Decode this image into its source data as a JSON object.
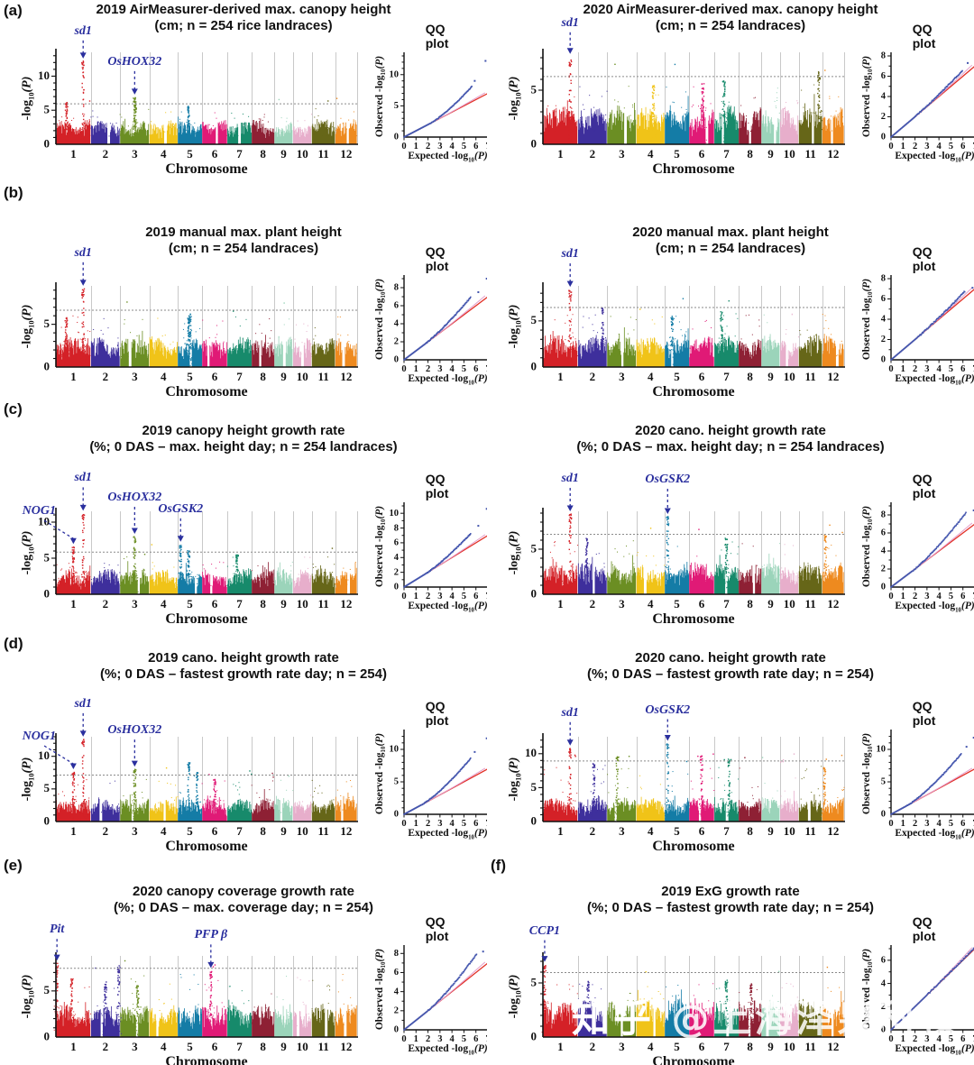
{
  "panel_letters": [
    "(a)",
    "(b)",
    "(c)",
    "(d)",
    "(e)",
    "(f)"
  ],
  "watermark": {
    "part1": "知乎",
    "part2": " @上海泽泉科技"
  },
  "axis_labels": {
    "manhattan_x": "Chromosome",
    "log_pre": "-log",
    "log_sub": "10",
    "log_arg": "(P)",
    "qq_obs_pre": "Observed -log",
    "qq_exp_pre": "Expected -log",
    "qq_title": "QQ plot"
  },
  "palette": {
    "chromosome_colors": [
      "#d42127",
      "#3e2f9c",
      "#6b8e23",
      "#f0c318",
      "#147ca6",
      "#e01a76",
      "#178a6b",
      "#8e2034",
      "#9bd4ba",
      "#e7aecb",
      "#666618",
      "#ee8a1f"
    ],
    "gene_label": "#2a2f9e",
    "threshold_line": "#8a8a8a",
    "gridline": "#c9c9c9",
    "axis": "#111111",
    "qq_observed": "#4456ae",
    "qq_expected": "#e23026",
    "qq_secondary": "#e49ecb",
    "background": "#ffffff"
  },
  "chart_data": {
    "type": "scatter",
    "subtype": "gwas-manhattan-with-qq-plots",
    "sample_size": 254,
    "chromosome_labels": [
      "1",
      "2",
      "3",
      "4",
      "5",
      "6",
      "7",
      "8",
      "9",
      "10",
      "11",
      "12"
    ],
    "chromosome_rel_lengths": [
      43,
      36,
      36,
      35,
      30,
      31,
      30,
      28,
      23,
      23,
      29,
      27
    ],
    "qq_x_ticks": [
      0,
      1,
      2,
      3,
      4,
      5,
      6,
      7
    ],
    "qq_x_max": 7,
    "panels": [
      {
        "id": "a-left",
        "title": [
          "2019 AirMeasurer-derived max. canopy height",
          "(cm; n = 254 rice landraces)"
        ],
        "y_ticks": [
          0,
          5,
          10
        ],
        "y_max": 13.5,
        "threshold": 6.0,
        "genes": [
          {
            "name": "sd1",
            "chr": 1,
            "pos": 0.78,
            "peak": 12.2,
            "dx": 0,
            "arrow": 20
          },
          {
            "name": "OsHOX32",
            "chr": 3,
            "pos": 0.5,
            "peak": 6.9,
            "dx": 0,
            "arrow": 26
          }
        ],
        "extra_peaks": [
          [
            1,
            0.3,
            6.3
          ],
          [
            3,
            0.52,
            5.8
          ],
          [
            5,
            0.45,
            5.6
          ]
        ],
        "scatter_above": 4,
        "qq": {
          "y_ticks": [
            0,
            5,
            10
          ],
          "y_max": 13,
          "end": [
            5.7,
            8.2
          ],
          "bend": 2.2,
          "extras": [
            [
              5.9,
              9.0
            ],
            [
              6.8,
              12.2
            ]
          ]
        }
      },
      {
        "id": "a-right",
        "title": [
          "2020 AirMeasurer-derived max. canopy height",
          "(cm; n = 254 landraces)"
        ],
        "y_ticks": [
          0,
          5
        ],
        "y_max": 8.5,
        "threshold": 6.3,
        "genes": [
          {
            "name": "sd1",
            "chr": 1,
            "pos": 0.78,
            "peak": 8.1,
            "dx": 0,
            "arrow": 24
          }
        ],
        "extra_peaks": [
          [
            11,
            0.85,
            6.8
          ],
          [
            7,
            0.4,
            6.0
          ],
          [
            4,
            0.6,
            5.5
          ],
          [
            6,
            0.55,
            5.6
          ]
        ],
        "scatter_above": 3,
        "qq": {
          "y_ticks": [
            0,
            2,
            4,
            6,
            8
          ],
          "y_max": 8,
          "end": [
            6.0,
            6.6
          ],
          "bend": 2.0,
          "extras": [
            [
              6.4,
              7.3
            ],
            [
              7.0,
              7.6
            ]
          ]
        }
      },
      {
        "id": "b-left",
        "title": [
          "2019 manual max. plant height",
          "(cm; n = 254 landraces)"
        ],
        "y_ticks": [
          0,
          5
        ],
        "y_max": 9.5,
        "threshold": 6.7,
        "genes": [
          {
            "name": "sd1",
            "chr": 1,
            "pos": 0.78,
            "peak": 9.2,
            "dx": 0,
            "arrow": 26
          }
        ],
        "extra_peaks": [
          [
            5,
            0.5,
            6.2
          ],
          [
            1,
            0.3,
            5.8
          ],
          [
            5,
            0.45,
            5.9
          ]
        ],
        "scatter_above": 3,
        "qq": {
          "y_ticks": [
            0,
            2,
            4,
            6,
            8
          ],
          "y_max": 9,
          "end": [
            5.6,
            7.0
          ],
          "bend": 1.8,
          "extras": [
            [
              6.2,
              7.5
            ],
            [
              6.9,
              9.0
            ]
          ]
        }
      },
      {
        "id": "b-right",
        "title": [
          "2020 manual max. plant height",
          "(cm; n = 254 landraces)"
        ],
        "y_ticks": [
          0,
          5
        ],
        "y_max": 8.8,
        "threshold": 6.5,
        "genes": [
          {
            "name": "sd1",
            "chr": 1,
            "pos": 0.78,
            "peak": 8.4,
            "dx": 0,
            "arrow": 26
          }
        ],
        "extra_peaks": [
          [
            2,
            0.85,
            6.6
          ],
          [
            5,
            0.3,
            5.5
          ],
          [
            7,
            0.3,
            6.0
          ]
        ],
        "scatter_above": 3,
        "qq": {
          "y_ticks": [
            0,
            2,
            4,
            6,
            8
          ],
          "y_max": 8,
          "end": [
            6.2,
            6.8
          ],
          "bend": 2.2,
          "extras": [
            [
              6.8,
              7.1
            ]
          ]
        }
      },
      {
        "id": "c-left",
        "title": [
          "2019 canopy height growth rate",
          "(%; 0 DAS – max. height day; n = 254 landraces)"
        ],
        "y_ticks": [
          0,
          5,
          10
        ],
        "y_max": 11.5,
        "threshold": 5.9,
        "genes": [
          {
            "name": "NOG1",
            "chr": 1,
            "pos": 0.5,
            "peak": 6.6,
            "dx": -38,
            "arrow": 26
          },
          {
            "name": "sd1",
            "chr": 1,
            "pos": 0.78,
            "peak": 11.2,
            "dx": 0,
            "arrow": 26
          },
          {
            "name": "OsHOX32",
            "chr": 3,
            "pos": 0.5,
            "peak": 8.0,
            "dx": 0,
            "arrow": 30
          },
          {
            "name": "OsGSK2",
            "chr": 5,
            "pos": 0.12,
            "peak": 6.9,
            "dx": 0,
            "arrow": 26
          }
        ],
        "extra_peaks": [
          [
            5,
            0.45,
            6.1
          ],
          [
            7,
            0.4,
            5.5
          ]
        ],
        "scatter_above": 6,
        "qq": {
          "y_ticks": [
            0,
            2,
            4,
            6,
            8,
            10
          ],
          "y_max": 11,
          "end": [
            5.6,
            7.3
          ],
          "bend": 1.8,
          "extras": [
            [
              6.2,
              8.3
            ],
            [
              6.9,
              10.6
            ]
          ]
        }
      },
      {
        "id": "c-right",
        "title": [
          "2020 cano. height growth rate",
          "(%; 0 DAS – max. height day; n = 254 landraces)"
        ],
        "y_ticks": [
          0,
          5
        ],
        "y_max": 9.2,
        "threshold": 6.7,
        "genes": [
          {
            "name": "sd1",
            "chr": 1,
            "pos": 0.78,
            "peak": 8.9,
            "dx": 0,
            "arrow": 26
          },
          {
            "name": "OsGSK2",
            "chr": 5,
            "pos": 0.12,
            "peak": 8.6,
            "dx": 0,
            "arrow": 28
          }
        ],
        "extra_peaks": [
          [
            2,
            0.3,
            6.2
          ],
          [
            7,
            0.5,
            6.3
          ],
          [
            12,
            0.15,
            6.6
          ]
        ],
        "scatter_above": 4,
        "qq": {
          "y_ticks": [
            0,
            2,
            4,
            6,
            8
          ],
          "y_max": 9,
          "end": [
            6.3,
            8.3
          ],
          "bend": 1.8,
          "extras": [
            [
              6.9,
              8.5
            ]
          ]
        }
      },
      {
        "id": "d-left",
        "title": [
          "2019 cano. height growth rate",
          "(%; 0 DAS – fastest growth rate day; n = 254)"
        ],
        "y_ticks": [
          0,
          5,
          10
        ],
        "y_max": 13.0,
        "threshold": 7.2,
        "genes": [
          {
            "name": "NOG1",
            "chr": 1,
            "pos": 0.5,
            "peak": 7.6,
            "dx": -38,
            "arrow": 26
          },
          {
            "name": "sd1",
            "chr": 1,
            "pos": 0.78,
            "peak": 12.6,
            "dx": 0,
            "arrow": 26
          },
          {
            "name": "OsHOX32",
            "chr": 3,
            "pos": 0.5,
            "peak": 8.0,
            "dx": 0,
            "arrow": 30
          }
        ],
        "extra_peaks": [
          [
            5,
            0.45,
            9.0
          ],
          [
            5,
            0.8,
            7.6
          ],
          [
            6,
            0.5,
            6.5
          ]
        ],
        "scatter_above": 8,
        "qq": {
          "y_ticks": [
            0,
            5,
            10
          ],
          "y_max": 12.5,
          "end": [
            5.6,
            8.7
          ],
          "bend": 1.5,
          "extras": [
            [
              5.9,
              9.6
            ],
            [
              6.9,
              11.7
            ]
          ]
        }
      },
      {
        "id": "d-right",
        "title": [
          "2020 cano. height growth rate",
          "(%; 0 DAS – fastest growth rate day; n = 254)"
        ],
        "y_ticks": [
          0,
          5,
          10
        ],
        "y_max": 12.5,
        "threshold": 9.0,
        "genes": [
          {
            "name": "sd1",
            "chr": 1,
            "pos": 0.78,
            "peak": 10.8,
            "dx": 0,
            "arrow": 26
          },
          {
            "name": "OsGSK2",
            "chr": 5,
            "pos": 0.12,
            "peak": 11.5,
            "dx": 0,
            "arrow": 24
          }
        ],
        "extra_peaks": [
          [
            3,
            0.35,
            9.6
          ],
          [
            6,
            0.5,
            9.8
          ],
          [
            7,
            0.6,
            9.2
          ],
          [
            12,
            0.1,
            8.0
          ],
          [
            2,
            0.55,
            8.6
          ]
        ],
        "scatter_above": 16,
        "qq": {
          "y_ticks": [
            0,
            5,
            10
          ],
          "y_max": 12.5,
          "end": [
            5.9,
            9.4
          ],
          "bend": 1.3,
          "extras": [
            [
              6.3,
              10.4
            ],
            [
              6.9,
              11.8
            ]
          ]
        }
      },
      {
        "id": "e",
        "title": [
          "2020 canopy coverage growth rate",
          "(%; 0 DAS – max. coverage day; n = 254)"
        ],
        "y_ticks": [
          0,
          5
        ],
        "y_max": 8.8,
        "threshold": 7.5,
        "genes": [
          {
            "name": "Pit",
            "chr": 1,
            "pos": 0.03,
            "peak": 8.0,
            "dx": 0,
            "arrow": 24
          },
          {
            "name": "PFP β",
            "chr": 6,
            "pos": 0.35,
            "peak": 7.2,
            "dx": 0,
            "arrow": 26
          }
        ],
        "extra_peaks": [
          [
            2,
            0.95,
            7.8
          ],
          [
            1,
            0.45,
            6.3
          ],
          [
            3,
            0.6,
            5.6
          ],
          [
            2,
            0.5,
            6.0
          ]
        ],
        "scatter_above": 4,
        "qq": {
          "y_ticks": [
            0,
            2,
            4,
            6,
            8
          ],
          "y_max": 8.5,
          "end": [
            6.1,
            8.0
          ],
          "bend": 2.0,
          "extras": [
            [
              6.6,
              8.2
            ]
          ]
        }
      },
      {
        "id": "f",
        "title": [
          "2019 ExG growth rate",
          "(%; 0 DAS – fastest growth rate day; n = 254)"
        ],
        "y_ticks": [
          0,
          5
        ],
        "y_max": 7.5,
        "threshold": 6.0,
        "genes": [
          {
            "name": "CCP1",
            "chr": 1,
            "pos": 0.05,
            "peak": 6.7,
            "dx": 0,
            "arrow": 24
          }
        ],
        "extra_peaks": [
          [
            2,
            0.35,
            5.2
          ],
          [
            7,
            0.5,
            5.3
          ],
          [
            8,
            0.55,
            5.0
          ]
        ],
        "scatter_above": 3,
        "qq": {
          "y_ticks": [
            0,
            2,
            4,
            6
          ],
          "y_max": 7,
          "end": [
            7.0,
            7.1
          ],
          "bend": 3.0,
          "extras": []
        }
      }
    ]
  }
}
